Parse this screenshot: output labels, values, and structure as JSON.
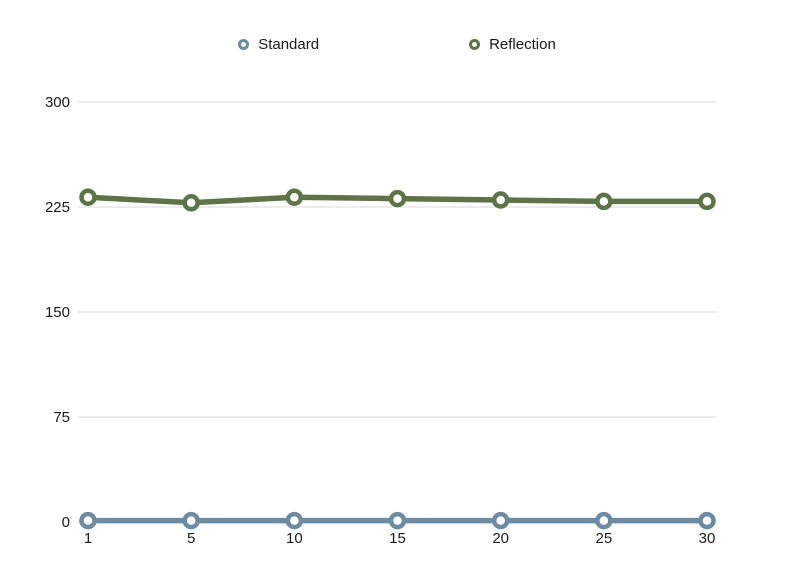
{
  "chart_data": {
    "type": "line",
    "title": "",
    "xlabel": "",
    "ylabel": "",
    "x": [
      1,
      5,
      10,
      15,
      20,
      25,
      30
    ],
    "series": [
      {
        "name": "Standard",
        "color": "#6d8ba3",
        "values": [
          1,
          1,
          1,
          1,
          1,
          1,
          1
        ]
      },
      {
        "name": "Reflection",
        "color": "#5e7347",
        "values": [
          232,
          228,
          232,
          231,
          230,
          229,
          229
        ]
      }
    ],
    "ylim": [
      0,
      300
    ],
    "yticks": [
      0,
      75,
      150,
      225,
      300
    ],
    "grid": true,
    "gridline_color": "#d9d9d9",
    "legend_position": "top"
  }
}
